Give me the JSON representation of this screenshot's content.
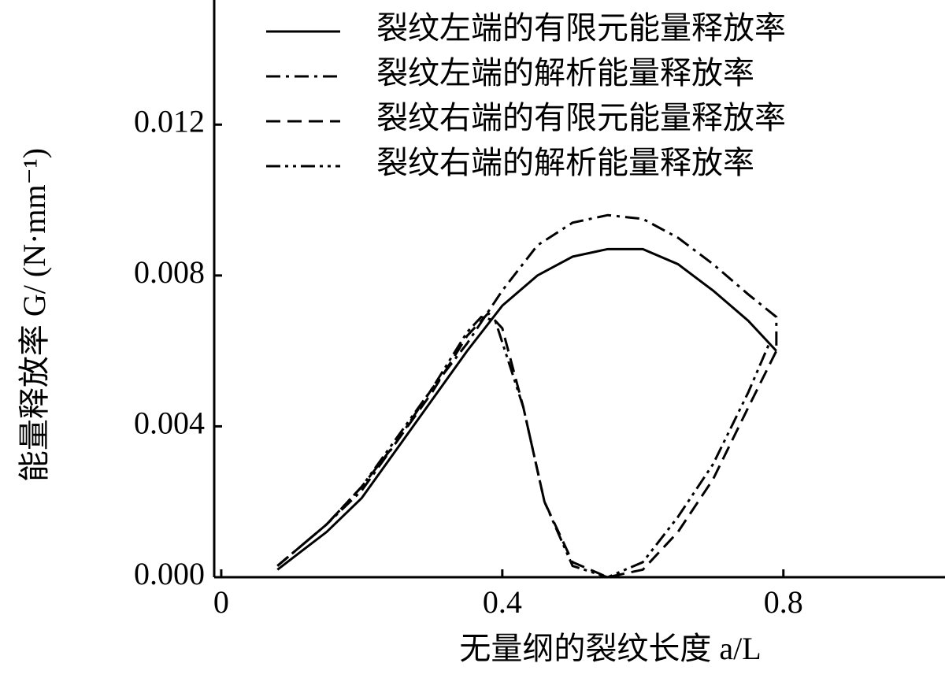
{
  "chart_data": {
    "type": "line",
    "x_label": "无量纲的裂纹长度 a/L",
    "y_label": "能量释放率 G/ (N·mm⁻¹)",
    "xlim": [
      -0.01,
      1.03
    ],
    "xticks": [
      0,
      0.4,
      0.8
    ],
    "ylim": [
      0,
      0.0152
    ],
    "yticks": [
      {
        "value": 0,
        "label": "0.000"
      },
      {
        "value": 0.004,
        "label": "0.004"
      },
      {
        "value": 0.008,
        "label": "0.008"
      },
      {
        "value": 0.012,
        "label": "0.012"
      }
    ],
    "series": [
      {
        "name": "裂纹左端的有限元能量释放率",
        "color": "#000000",
        "linestyle": "solid",
        "x": [
          0.08,
          0.15,
          0.2,
          0.25,
          0.3,
          0.35,
          0.4,
          0.45,
          0.5,
          0.55,
          0.6,
          0.65,
          0.7,
          0.75,
          0.79
        ],
        "values": [
          0.0002,
          0.0012,
          0.0021,
          0.0034,
          0.0047,
          0.006,
          0.0072,
          0.008,
          0.0085,
          0.0087,
          0.0087,
          0.0083,
          0.0076,
          0.0068,
          0.006
        ]
      },
      {
        "name": "裂纹左端的解析能量释放率",
        "color": "#000000",
        "linestyle": "dashdot",
        "x": [
          0.08,
          0.15,
          0.2,
          0.25,
          0.3,
          0.35,
          0.4,
          0.45,
          0.5,
          0.55,
          0.6,
          0.65,
          0.7,
          0.75,
          0.79,
          0.79
        ],
        "values": [
          0.0003,
          0.0014,
          0.0023,
          0.0036,
          0.005,
          0.0062,
          0.0076,
          0.0088,
          0.0094,
          0.0096,
          0.0095,
          0.009,
          0.0083,
          0.0075,
          0.0069,
          0.006
        ]
      },
      {
        "name": "裂纹右端的有限元能量释放率",
        "color": "#000000",
        "linestyle": "dashed",
        "x": [
          0.08,
          0.15,
          0.2,
          0.25,
          0.3,
          0.35,
          0.38,
          0.4,
          0.43,
          0.46,
          0.5,
          0.55,
          0.6,
          0.65,
          0.7,
          0.75,
          0.79
        ],
        "values": [
          0.0003,
          0.0014,
          0.0024,
          0.0036,
          0.0049,
          0.0064,
          0.007,
          0.0066,
          0.0045,
          0.002,
          0.0004,
          0,
          0.0002,
          0.0012,
          0.0026,
          0.0045,
          0.006
        ]
      },
      {
        "name": "裂纹右端的解析能量释放率",
        "color": "#000000",
        "linestyle": "dashdotdot",
        "x": [
          0.08,
          0.15,
          0.2,
          0.25,
          0.3,
          0.35,
          0.37,
          0.39,
          0.43,
          0.46,
          0.5,
          0.55,
          0.6,
          0.65,
          0.7,
          0.75,
          0.78
        ],
        "values": [
          0.0003,
          0.0014,
          0.0024,
          0.0037,
          0.005,
          0.0065,
          0.0069,
          0.0068,
          0.0045,
          0.002,
          0.0003,
          0,
          0.0004,
          0.0016,
          0.003,
          0.0049,
          0.0062
        ]
      }
    ]
  }
}
